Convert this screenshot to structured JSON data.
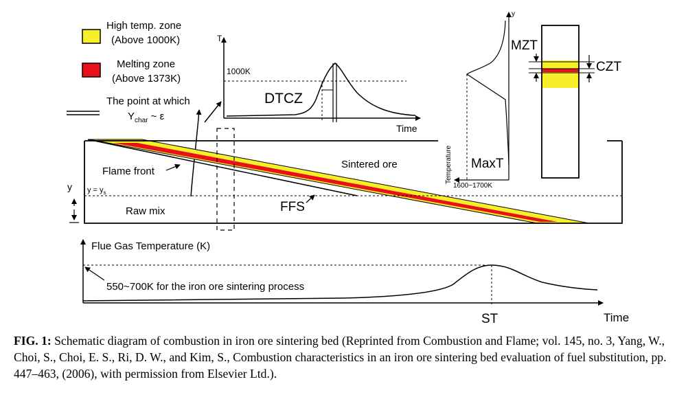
{
  "legend": {
    "high_temp_line1": "High temp. zone",
    "high_temp_line2": "(Above 1000K)",
    "melting_line1": "Melting zone",
    "melting_line2": "(Above 1373K)",
    "point_line1": "The point at which",
    "point_y": "Y",
    "point_sub": "char",
    "point_rest": " ~ ε",
    "color_high": "#f7ef2a",
    "color_melt": "#e8101a"
  },
  "inset_graph": {
    "y_axis": "T",
    "x_axis": "Time",
    "ref_value": "1000K",
    "label": "DTCZ"
  },
  "bed": {
    "flame_front": "Flame front",
    "sintered_ore": "Sintered ore",
    "raw_mix": "Raw mix",
    "ffs": "FFS",
    "y_label": "y",
    "y_eq": "y = y",
    "y_eq_sub": "s"
  },
  "profile": {
    "y_axis": "y",
    "mzt": "MZT",
    "czt": "CZT",
    "maxt": "MaxT",
    "temperature": "Temperature",
    "range": "1600~1700K"
  },
  "flue_graph": {
    "title": "Flue Gas Temperature (K)",
    "note": "550~700K for the iron ore sintering process",
    "st": "ST",
    "x_axis": "Time"
  },
  "caption": {
    "label": "FIG. 1:",
    "text": " Schematic diagram of combustion in iron ore sintering bed (Reprinted from Combustion and Flame; vol. 145, no. 3, Yang, W., Choi, S., Choi, E. S., Ri, D. W., and Kim, S., Combustion characteristics in an iron ore sintering bed evaluation of fuel substitution, pp. 447–463, (2006), with permission from Elsevier Ltd.)."
  }
}
